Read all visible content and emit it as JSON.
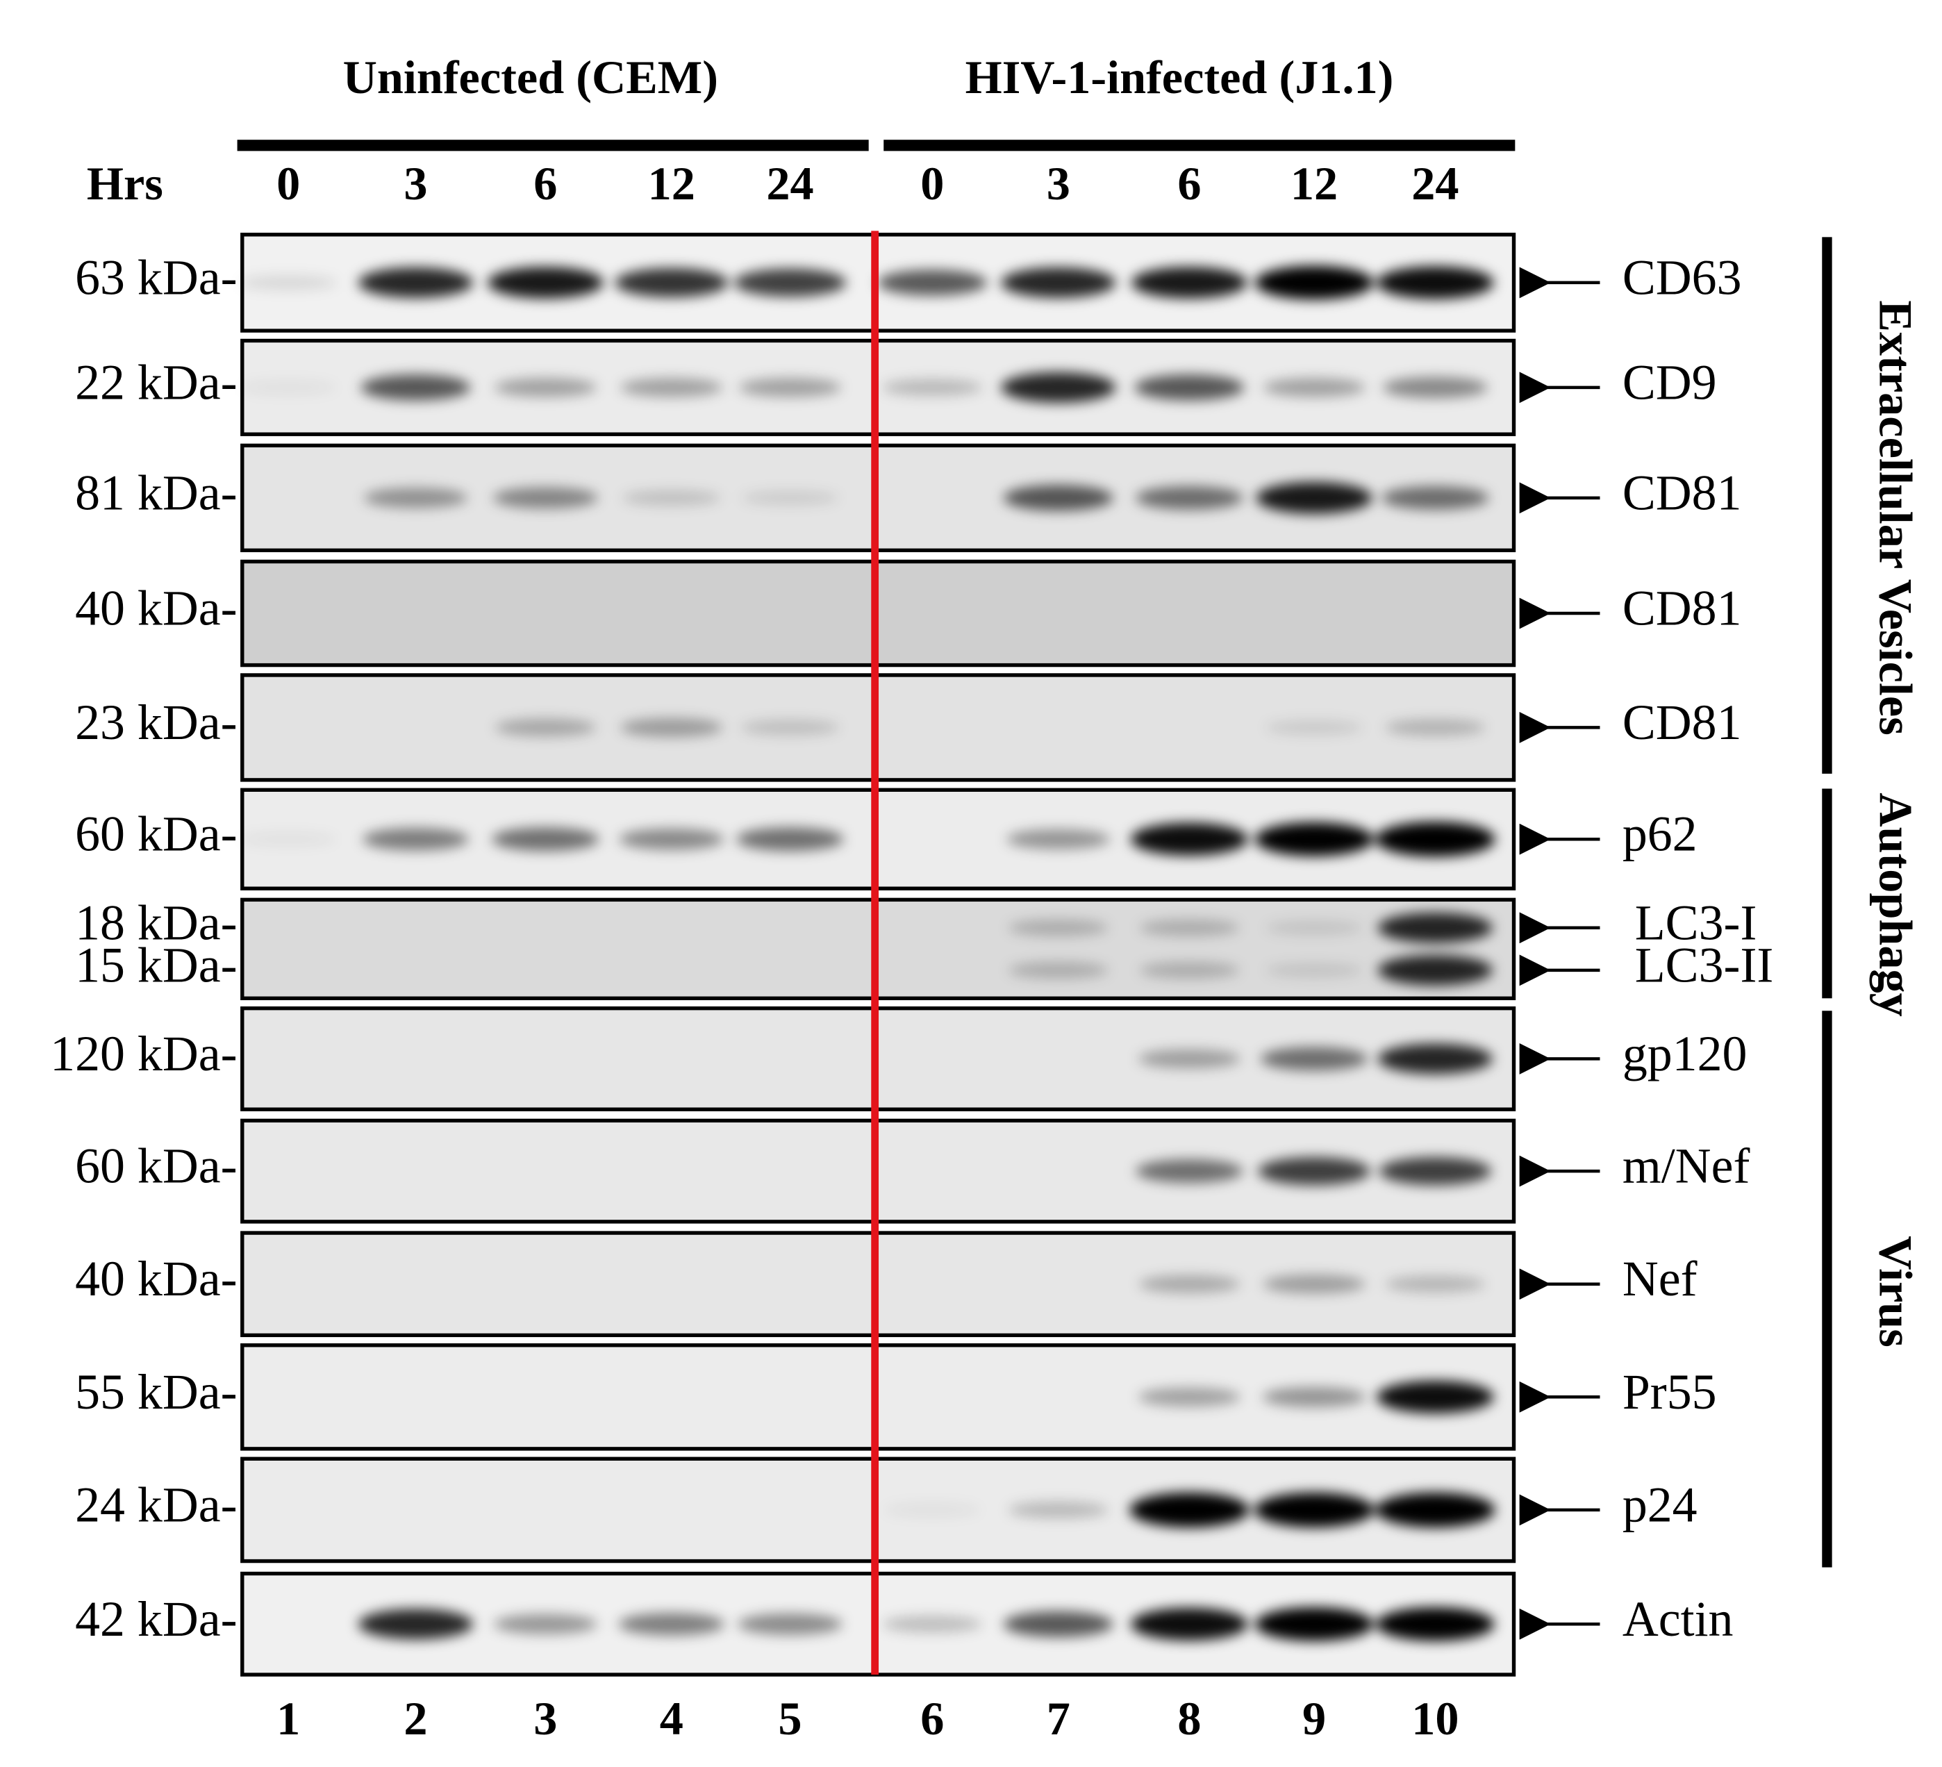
{
  "header": {
    "groups": [
      "Uninfected (CEM)",
      "HIV-1-infected (J1.1)"
    ],
    "hrs_label": "Hrs",
    "timepoints": [
      "0",
      "3",
      "6",
      "12",
      "24",
      "0",
      "3",
      "6",
      "12",
      "24"
    ]
  },
  "panels": [
    {
      "markers": [
        "63 kDa-"
      ],
      "proteins": [
        "CD63"
      ]
    },
    {
      "markers": [
        "22 kDa-"
      ],
      "proteins": [
        "CD9"
      ]
    },
    {
      "markers": [
        "81 kDa-"
      ],
      "proteins": [
        "CD81"
      ]
    },
    {
      "markers": [
        "40 kDa-"
      ],
      "proteins": [
        "CD81"
      ]
    },
    {
      "markers": [
        "23 kDa-"
      ],
      "proteins": [
        "CD81"
      ]
    },
    {
      "markers": [
        "60 kDa-"
      ],
      "proteins": [
        "p62"
      ]
    },
    {
      "markers": [
        "18 kDa-",
        "15 kDa-"
      ],
      "proteins": [
        "LC3-I",
        "LC3-II"
      ]
    },
    {
      "markers": [
        "120 kDa-"
      ],
      "proteins": [
        "gp120"
      ]
    },
    {
      "markers": [
        "60 kDa-"
      ],
      "proteins": [
        "m/Nef"
      ]
    },
    {
      "markers": [
        "40 kDa-"
      ],
      "proteins": [
        "Nef"
      ]
    },
    {
      "markers": [
        "55 kDa-"
      ],
      "proteins": [
        "Pr55"
      ]
    },
    {
      "markers": [
        "24 kDa-"
      ],
      "proteins": [
        "p24"
      ]
    },
    {
      "markers": [
        "42 kDa-"
      ],
      "proteins": [
        "Actin"
      ]
    }
  ],
  "sections": [
    "Extracellular Vesicles",
    "Autophagy",
    "Virus"
  ],
  "lanes": [
    "1",
    "2",
    "3",
    "4",
    "5",
    "6",
    "7",
    "8",
    "9",
    "10"
  ]
}
